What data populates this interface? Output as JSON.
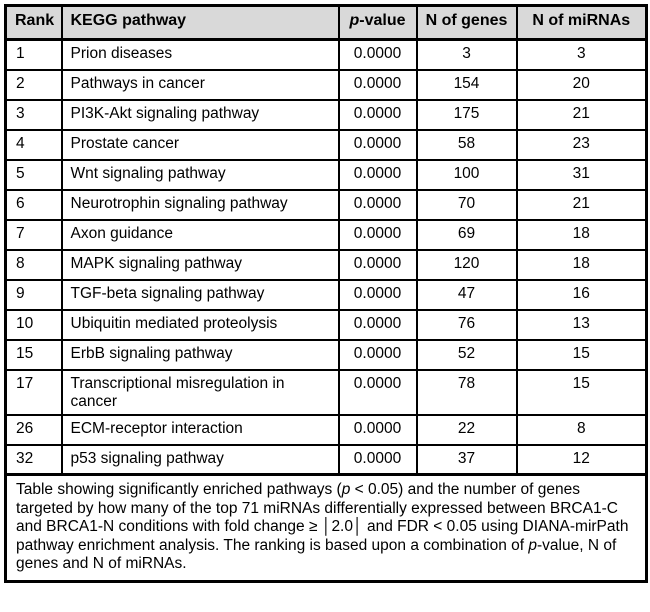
{
  "table": {
    "header": {
      "rank": "Rank",
      "pathway": "KEGG pathway",
      "pvalue_italic": "p",
      "pvalue_rest": "-value",
      "genes": "N of genes",
      "mirnas": "N of miRNAs"
    },
    "rows": [
      {
        "rank": "1",
        "pathway": "Prion diseases",
        "pvalue": "0.0000",
        "genes": "3",
        "mirnas": "3"
      },
      {
        "rank": "2",
        "pathway": "Pathways in cancer",
        "pvalue": "0.0000",
        "genes": "154",
        "mirnas": "20"
      },
      {
        "rank": "3",
        "pathway": "PI3K-Akt signaling pathway",
        "pvalue": "0.0000",
        "genes": "175",
        "mirnas": "21"
      },
      {
        "rank": "4",
        "pathway": "Prostate cancer",
        "pvalue": "0.0000",
        "genes": "58",
        "mirnas": "23"
      },
      {
        "rank": "5",
        "pathway": "Wnt signaling pathway",
        "pvalue": "0.0000",
        "genes": "100",
        "mirnas": "31"
      },
      {
        "rank": "6",
        "pathway": "Neurotrophin signaling pathway",
        "pvalue": "0.0000",
        "genes": "70",
        "mirnas": "21"
      },
      {
        "rank": "7",
        "pathway": "Axon guidance",
        "pvalue": "0.0000",
        "genes": "69",
        "mirnas": "18"
      },
      {
        "rank": "8",
        "pathway": "MAPK signaling pathway",
        "pvalue": "0.0000",
        "genes": "120",
        "mirnas": "18"
      },
      {
        "rank": "9",
        "pathway": "TGF-beta signaling pathway",
        "pvalue": "0.0000",
        "genes": "47",
        "mirnas": "16"
      },
      {
        "rank": "10",
        "pathway": "Ubiquitin mediated proteolysis",
        "pvalue": "0.0000",
        "genes": "76",
        "mirnas": "13"
      },
      {
        "rank": "15",
        "pathway": "ErbB signaling pathway",
        "pvalue": "0.0000",
        "genes": "52",
        "mirnas": "15"
      },
      {
        "rank": "17",
        "pathway": "Transcriptional misregulation in cancer",
        "pvalue": "0.0000",
        "genes": "78",
        "mirnas": "15"
      },
      {
        "rank": "26",
        "pathway": "ECM-receptor interaction",
        "pvalue": "0.0000",
        "genes": "22",
        "mirnas": "8"
      },
      {
        "rank": "32",
        "pathway": "p53 signaling pathway",
        "pvalue": "0.0000",
        "genes": "37",
        "mirnas": "12"
      }
    ],
    "caption": {
      "part1": "Table showing significantly enriched pathways (",
      "italic1": "p",
      "part2": " < 0.05) and the number of genes targeted by how many of the top 71 miRNAs differentially expressed between BRCA1-C and BRCA1-N conditions with fold change ≥ │2.0│ and FDR < 0.05 using DIANA-mirPath pathway enrichment analysis. The ranking is based upon a combination of ",
      "italic2": "p",
      "part3": "-value, N of genes and N of miRNAs."
    },
    "colors": {
      "header_bg": "#d9d9d9",
      "border": "#000000"
    }
  }
}
